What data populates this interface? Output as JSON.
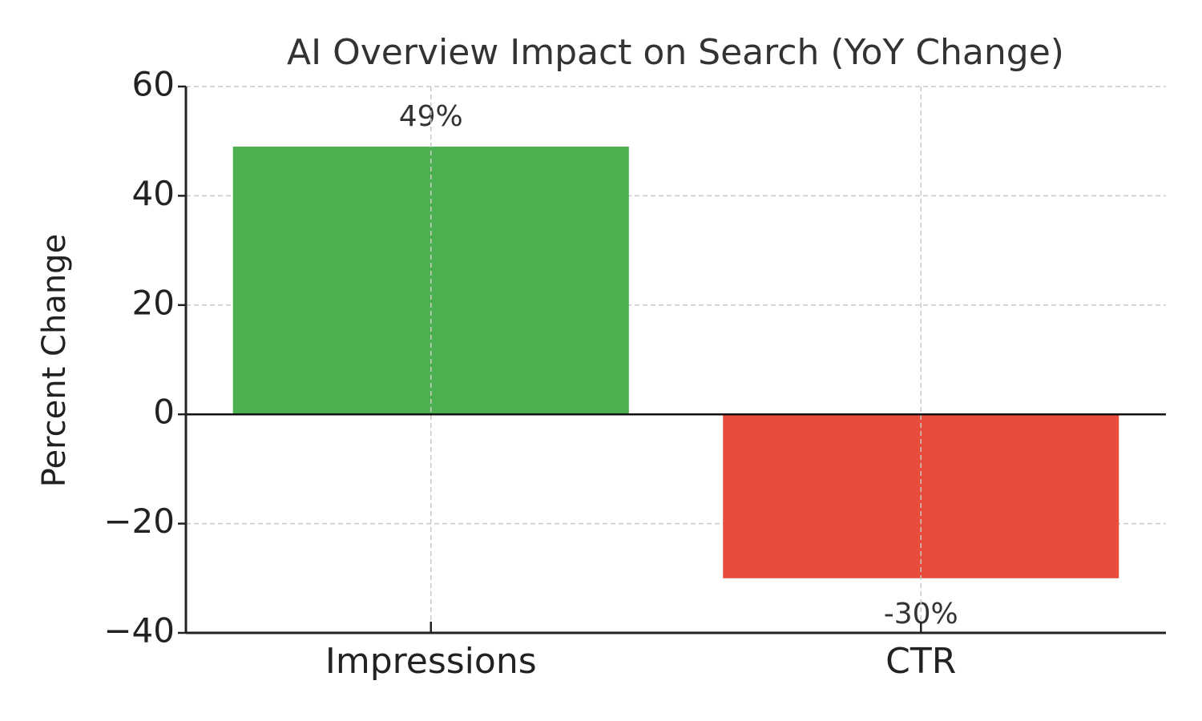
{
  "chart_data": {
    "type": "bar",
    "title": "AI Overview Impact on Search (YoY Change)",
    "y_label": "Percent Change",
    "categories": [
      "Impressions",
      "CTR"
    ],
    "values": [
      49,
      -30
    ],
    "value_labels": [
      "49%",
      "-30%"
    ],
    "colors": [
      "#4caf50",
      "#e74c3c"
    ],
    "ylim": [
      -40,
      60
    ],
    "yticks": [
      {
        "value": -40,
        "label": "−40"
      },
      {
        "value": -20,
        "label": "−20"
      },
      0,
      20,
      40,
      60
    ],
    "grid": true
  }
}
